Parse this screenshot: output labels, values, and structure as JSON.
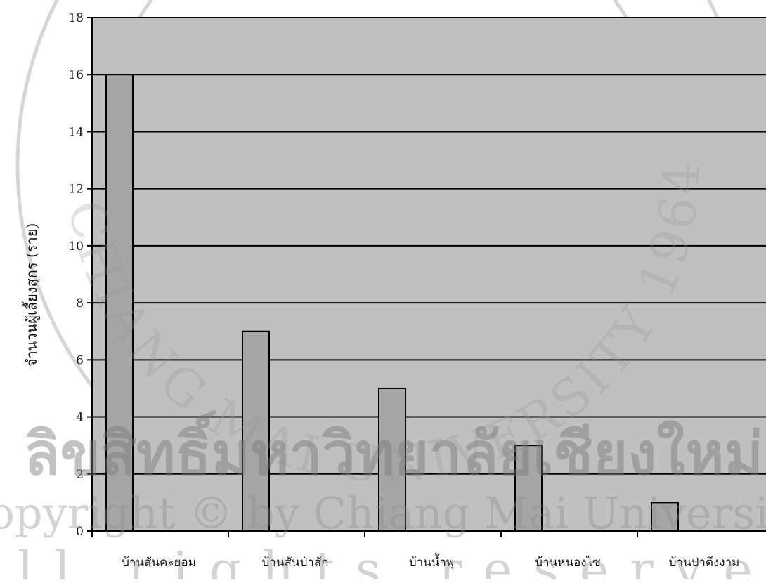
{
  "watermark": {
    "seal_text_top": "CHIANG MAI UNIVERSITY 1964",
    "line1": "ลิขสิทธิ์มหาวิทยาลัยเชียงใหม่",
    "line2": "Copyright © by Chiang Mai University",
    "line3": "All rights reserved"
  },
  "colors": {
    "plot_bg": "#c0c0c0",
    "bar_fill": "#a6a6a6",
    "bar_stroke": "#000000",
    "grid": "#000000"
  },
  "chart_data": {
    "type": "bar",
    "title": "",
    "xlabel": "",
    "ylabel": "จำนวนผู้เลี้ยงสุกร (ราย)",
    "categories": [
      "บ้านสันคะยอม",
      "บ้านสันป่าสัก",
      "บ้านน้ำพุ",
      "บ้านหนองไซ",
      "บ้านป่าตึงงาม"
    ],
    "values": [
      16,
      7,
      5,
      3,
      1
    ],
    "ylim": [
      0,
      18
    ],
    "yticks": [
      0,
      2,
      4,
      6,
      8,
      10,
      12,
      14,
      16,
      18
    ],
    "grid": true,
    "legend": "none"
  }
}
